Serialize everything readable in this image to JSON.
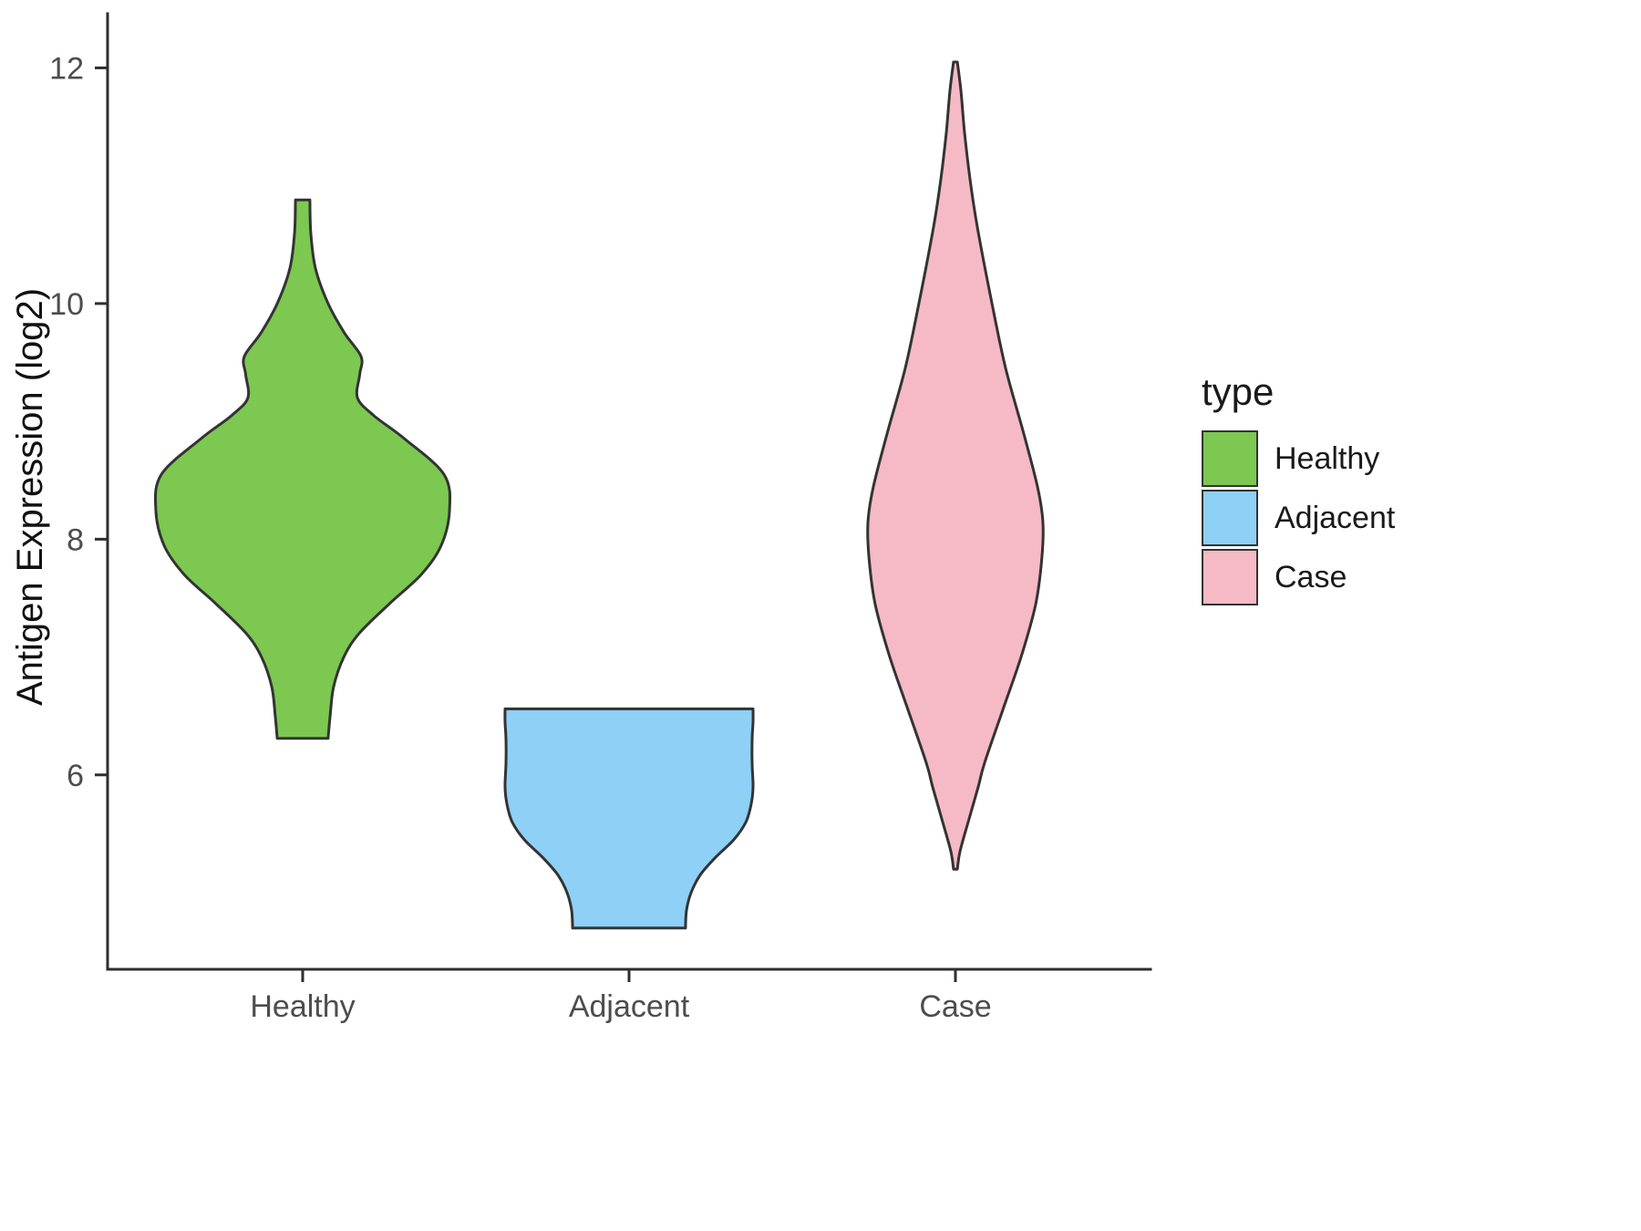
{
  "chart_data": {
    "type": "violin",
    "title": "",
    "xlabel": "",
    "ylabel": "Antigen Expression (log2)",
    "categories": [
      "Healthy",
      "Adjacent",
      "Case"
    ],
    "y_ticks": [
      6,
      8,
      10,
      12
    ],
    "ylim": [
      4.35,
      12.46
    ],
    "grid": false,
    "stroke_color": "#333333",
    "legend": {
      "title": "type",
      "position": "right",
      "entries": [
        "Healthy",
        "Adjacent",
        "Case"
      ]
    },
    "series": [
      {
        "name": "Healthy",
        "color": "#7cc850",
        "y_min": 6.31,
        "y_max": 10.88,
        "profile": [
          [
            6.31,
            0.078
          ],
          [
            6.5,
            0.084
          ],
          [
            6.75,
            0.095
          ],
          [
            7.0,
            0.126
          ],
          [
            7.2,
            0.173
          ],
          [
            7.45,
            0.265
          ],
          [
            7.7,
            0.363
          ],
          [
            7.95,
            0.425
          ],
          [
            8.25,
            0.45
          ],
          [
            8.55,
            0.433
          ],
          [
            8.85,
            0.313
          ],
          [
            9.05,
            0.218
          ],
          [
            9.2,
            0.168
          ],
          [
            9.4,
            0.175
          ],
          [
            9.55,
            0.179
          ],
          [
            9.75,
            0.128
          ],
          [
            10.0,
            0.078
          ],
          [
            10.3,
            0.039
          ],
          [
            10.6,
            0.025
          ],
          [
            10.88,
            0.022
          ]
        ]
      },
      {
        "name": "Adjacent",
        "color": "#8ed0f6",
        "y_min": 4.7,
        "y_max": 6.56,
        "profile": [
          [
            4.7,
            0.173
          ],
          [
            4.85,
            0.176
          ],
          [
            5.0,
            0.19
          ],
          [
            5.15,
            0.218
          ],
          [
            5.3,
            0.265
          ],
          [
            5.45,
            0.321
          ],
          [
            5.6,
            0.358
          ],
          [
            5.75,
            0.374
          ],
          [
            5.9,
            0.38
          ],
          [
            6.1,
            0.377
          ],
          [
            6.3,
            0.377
          ],
          [
            6.45,
            0.38
          ],
          [
            6.56,
            0.38
          ]
        ]
      },
      {
        "name": "Case",
        "color": "#f5bac5",
        "y_min": 5.2,
        "y_max": 12.05,
        "profile": [
          [
            5.2,
            0.006
          ],
          [
            5.35,
            0.014
          ],
          [
            5.6,
            0.039
          ],
          [
            5.9,
            0.07
          ],
          [
            6.1,
            0.089
          ],
          [
            6.55,
            0.145
          ],
          [
            7.0,
            0.201
          ],
          [
            7.45,
            0.246
          ],
          [
            7.85,
            0.265
          ],
          [
            8.15,
            0.268
          ],
          [
            8.45,
            0.251
          ],
          [
            8.9,
            0.209
          ],
          [
            9.45,
            0.154
          ],
          [
            10.0,
            0.112
          ],
          [
            10.65,
            0.067
          ],
          [
            11.05,
            0.045
          ],
          [
            11.45,
            0.028
          ],
          [
            11.8,
            0.017
          ],
          [
            12.05,
            0.006
          ]
        ]
      }
    ]
  }
}
